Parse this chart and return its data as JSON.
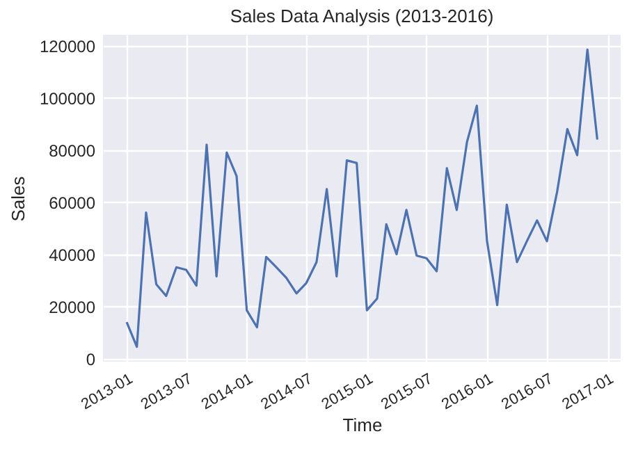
{
  "chart_data": {
    "type": "line",
    "title": "Sales Data Analysis (2013-2016)",
    "xlabel": "Time",
    "ylabel": "Sales",
    "x": [
      "2013-01",
      "2013-02",
      "2013-03",
      "2013-04",
      "2013-05",
      "2013-06",
      "2013-07",
      "2013-08",
      "2013-09",
      "2013-10",
      "2013-11",
      "2013-12",
      "2014-01",
      "2014-02",
      "2014-03",
      "2014-04",
      "2014-05",
      "2014-06",
      "2014-07",
      "2014-08",
      "2014-09",
      "2014-10",
      "2014-11",
      "2014-12",
      "2015-01",
      "2015-02",
      "2015-03",
      "2015-04",
      "2015-05",
      "2015-06",
      "2015-07",
      "2015-08",
      "2015-09",
      "2015-10",
      "2015-11",
      "2015-12",
      "2016-01",
      "2016-02",
      "2016-03",
      "2016-04",
      "2016-05",
      "2016-06",
      "2016-07",
      "2016-08",
      "2016-09",
      "2016-10",
      "2016-11",
      "2016-12"
    ],
    "series": [
      {
        "color": "#4c72b0",
        "values": [
          14000,
          4500,
          56000,
          28500,
          24000,
          35000,
          34000,
          28000,
          82000,
          31500,
          79000,
          70000,
          18500,
          12000,
          39000,
          35000,
          31000,
          25000,
          29000,
          37000,
          65000,
          31500,
          76000,
          75000,
          18500,
          23000,
          51500,
          40000,
          57000,
          39500,
          38500,
          33500,
          73000,
          57000,
          83000,
          97000,
          45000,
          20500,
          59000,
          37000,
          45000,
          53000,
          45000,
          64000,
          88000,
          78000,
          118500,
          84000
        ]
      }
    ],
    "xlim": [
      "2012-10-21",
      "2017-02-10"
    ],
    "xticks": [
      "2013-01",
      "2013-07",
      "2014-01",
      "2014-07",
      "2015-01",
      "2015-07",
      "2016-01",
      "2016-07",
      "2017-01"
    ],
    "ylim": [
      -1200,
      124200
    ],
    "yticks": [
      0,
      20000,
      40000,
      60000,
      80000,
      100000,
      120000
    ],
    "grid": true,
    "legend": false,
    "line_style": "solid",
    "marker": "none"
  }
}
